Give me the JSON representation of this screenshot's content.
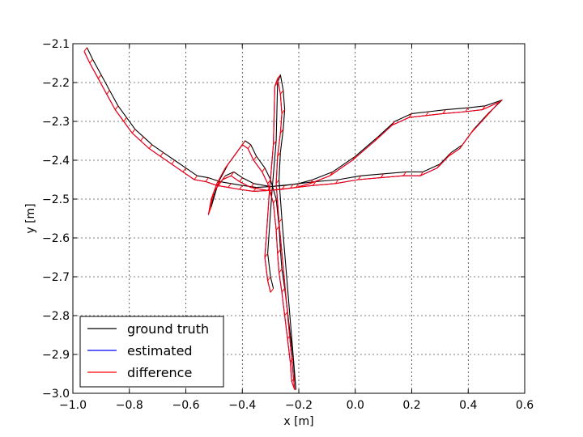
{
  "chart_data": {
    "type": "line",
    "xlabel": "x [m]",
    "ylabel": "y [m]",
    "xlim": [
      -1.0,
      0.6
    ],
    "ylim": [
      -3.0,
      -2.1
    ],
    "grid": true,
    "legend_position": "bottom-left",
    "x_ticks": [
      -1.0,
      -0.8,
      -0.6,
      -0.4,
      -0.2,
      0.0,
      0.2,
      0.4,
      0.6
    ],
    "x_tick_labels": [
      "−1.0",
      "−0.8",
      "−0.6",
      "−0.4",
      "−0.2",
      "0.0",
      "0.2",
      "0.4",
      "0.6"
    ],
    "y_ticks": [
      -2.1,
      -2.2,
      -2.3,
      -2.4,
      -2.5,
      -2.6,
      -2.7,
      -2.8,
      -2.9,
      -3.0
    ],
    "y_tick_labels": [
      "−2.1",
      "−2.2",
      "−2.3",
      "−2.4",
      "−2.5",
      "−2.6",
      "−2.7",
      "−2.8",
      "−2.9",
      "−3.0"
    ],
    "series": [
      {
        "name": "ground truth",
        "color": "#000000",
        "x": [
          -0.95,
          -0.93,
          -0.9,
          -0.87,
          -0.84,
          -0.81,
          -0.78,
          -0.75,
          -0.72,
          -0.68,
          -0.64,
          -0.6,
          -0.56,
          -0.52,
          -0.48,
          -0.44,
          -0.4,
          -0.35,
          -0.3,
          -0.25,
          -0.2,
          -0.15,
          -0.08,
          0.0,
          0.08,
          0.14,
          0.2,
          0.26,
          0.32,
          0.4,
          0.46,
          0.52,
          0.47,
          0.42,
          0.38,
          0.34,
          0.3,
          0.24,
          0.18,
          0.1,
          0.02,
          -0.06,
          -0.14,
          -0.22,
          -0.3,
          -0.36,
          -0.4,
          -0.43,
          -0.46,
          -0.49,
          -0.51,
          -0.5,
          -0.48,
          -0.45,
          -0.42,
          -0.39,
          -0.37,
          -0.35,
          -0.32,
          -0.3,
          -0.28,
          -0.27,
          -0.265,
          -0.26,
          -0.25,
          -0.24,
          -0.23,
          -0.22,
          -0.215,
          -0.21,
          -0.26,
          -0.27,
          -0.265,
          -0.255,
          -0.25,
          -0.255,
          -0.265,
          -0.275,
          -0.28,
          -0.295,
          -0.31,
          -0.3,
          -0.29
        ],
        "y": [
          -2.11,
          -2.14,
          -2.18,
          -2.22,
          -2.26,
          -2.29,
          -2.32,
          -2.34,
          -2.36,
          -2.38,
          -2.4,
          -2.42,
          -2.44,
          -2.445,
          -2.455,
          -2.46,
          -2.465,
          -2.47,
          -2.468,
          -2.465,
          -2.46,
          -2.45,
          -2.43,
          -2.39,
          -2.34,
          -2.3,
          -2.28,
          -2.275,
          -2.27,
          -2.265,
          -2.26,
          -2.245,
          -2.28,
          -2.32,
          -2.36,
          -2.38,
          -2.41,
          -2.43,
          -2.43,
          -2.435,
          -2.44,
          -2.45,
          -2.455,
          -2.462,
          -2.468,
          -2.46,
          -2.445,
          -2.43,
          -2.44,
          -2.47,
          -2.52,
          -2.49,
          -2.45,
          -2.41,
          -2.38,
          -2.35,
          -2.36,
          -2.39,
          -2.42,
          -2.45,
          -2.5,
          -2.57,
          -2.63,
          -2.68,
          -2.73,
          -2.79,
          -2.85,
          -2.91,
          -2.96,
          -2.99,
          -2.55,
          -2.45,
          -2.38,
          -2.32,
          -2.27,
          -2.22,
          -2.18,
          -2.2,
          -2.35,
          -2.48,
          -2.64,
          -2.7,
          -2.73
        ]
      },
      {
        "name": "estimated",
        "color": "#0000ff",
        "x": [
          -0.96,
          -0.94,
          -0.91,
          -0.88,
          -0.85,
          -0.82,
          -0.79,
          -0.76,
          -0.73,
          -0.69,
          -0.65,
          -0.61,
          -0.57,
          -0.53,
          -0.49,
          -0.45,
          -0.41,
          -0.36,
          -0.31,
          -0.26,
          -0.21,
          -0.16,
          -0.09,
          -0.01,
          0.07,
          0.13,
          0.19,
          0.25,
          0.31,
          0.39,
          0.45,
          0.51,
          0.46,
          0.41,
          0.37,
          0.33,
          0.29,
          0.23,
          0.17,
          0.09,
          0.01,
          -0.07,
          -0.15,
          -0.23,
          -0.31,
          -0.37,
          -0.41,
          -0.44,
          -0.47,
          -0.5,
          -0.52,
          -0.51,
          -0.49,
          -0.46,
          -0.43,
          -0.4,
          -0.38,
          -0.36,
          -0.33,
          -0.31,
          -0.29,
          -0.28,
          -0.275,
          -0.27,
          -0.26,
          -0.25,
          -0.24,
          -0.23,
          -0.225,
          -0.215,
          -0.27,
          -0.28,
          -0.275,
          -0.265,
          -0.26,
          -0.265,
          -0.275,
          -0.285,
          -0.29,
          -0.305,
          -0.32,
          -0.31,
          -0.3
        ],
        "y": [
          -2.12,
          -2.15,
          -2.19,
          -2.23,
          -2.27,
          -2.3,
          -2.33,
          -2.35,
          -2.37,
          -2.39,
          -2.41,
          -2.43,
          -2.45,
          -2.455,
          -2.465,
          -2.47,
          -2.475,
          -2.48,
          -2.478,
          -2.475,
          -2.47,
          -2.46,
          -2.44,
          -2.4,
          -2.35,
          -2.31,
          -2.29,
          -2.285,
          -2.28,
          -2.275,
          -2.27,
          -2.25,
          -2.29,
          -2.33,
          -2.37,
          -2.39,
          -2.42,
          -2.44,
          -2.44,
          -2.445,
          -2.45,
          -2.46,
          -2.465,
          -2.472,
          -2.478,
          -2.47,
          -2.455,
          -2.44,
          -2.45,
          -2.48,
          -2.54,
          -2.5,
          -2.46,
          -2.42,
          -2.39,
          -2.36,
          -2.37,
          -2.4,
          -2.43,
          -2.46,
          -2.51,
          -2.58,
          -2.64,
          -2.69,
          -2.74,
          -2.8,
          -2.86,
          -2.92,
          -2.97,
          -2.99,
          -2.56,
          -2.46,
          -2.39,
          -2.33,
          -2.28,
          -2.23,
          -2.19,
          -2.21,
          -2.36,
          -2.49,
          -2.65,
          -2.71,
          -2.74
        ]
      }
    ]
  },
  "legend": {
    "items": [
      {
        "label": "ground truth",
        "color": "#000000"
      },
      {
        "label": "estimated",
        "color": "#0000ff"
      },
      {
        "label": "difference",
        "color": "#ff0000"
      }
    ]
  }
}
